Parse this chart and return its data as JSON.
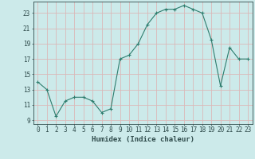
{
  "x": [
    0,
    1,
    2,
    3,
    4,
    5,
    6,
    7,
    8,
    9,
    10,
    11,
    12,
    13,
    14,
    15,
    16,
    17,
    18,
    19,
    20,
    21,
    22,
    23
  ],
  "y": [
    14,
    13,
    9.5,
    11.5,
    12,
    12,
    11.5,
    10,
    10.5,
    17,
    17.5,
    19,
    21.5,
    23,
    23.5,
    23.5,
    24,
    23.5,
    23,
    19.5,
    13.5,
    18.5,
    17,
    17
  ],
  "line_color": "#2e7d6e",
  "marker_color": "#2e7d6e",
  "bg_color": "#cceaea",
  "grid_color": "#dbb8b8",
  "xlabel": "Humidex (Indice chaleur)",
  "xlim": [
    -0.5,
    23.5
  ],
  "ylim": [
    8.5,
    24.5
  ],
  "yticks": [
    9,
    11,
    13,
    15,
    17,
    19,
    21,
    23
  ],
  "xticks": [
    0,
    1,
    2,
    3,
    4,
    5,
    6,
    7,
    8,
    9,
    10,
    11,
    12,
    13,
    14,
    15,
    16,
    17,
    18,
    19,
    20,
    21,
    22,
    23
  ],
  "font_color": "#2e4a4a",
  "tick_fontsize": 5.5,
  "label_fontsize": 6.5
}
